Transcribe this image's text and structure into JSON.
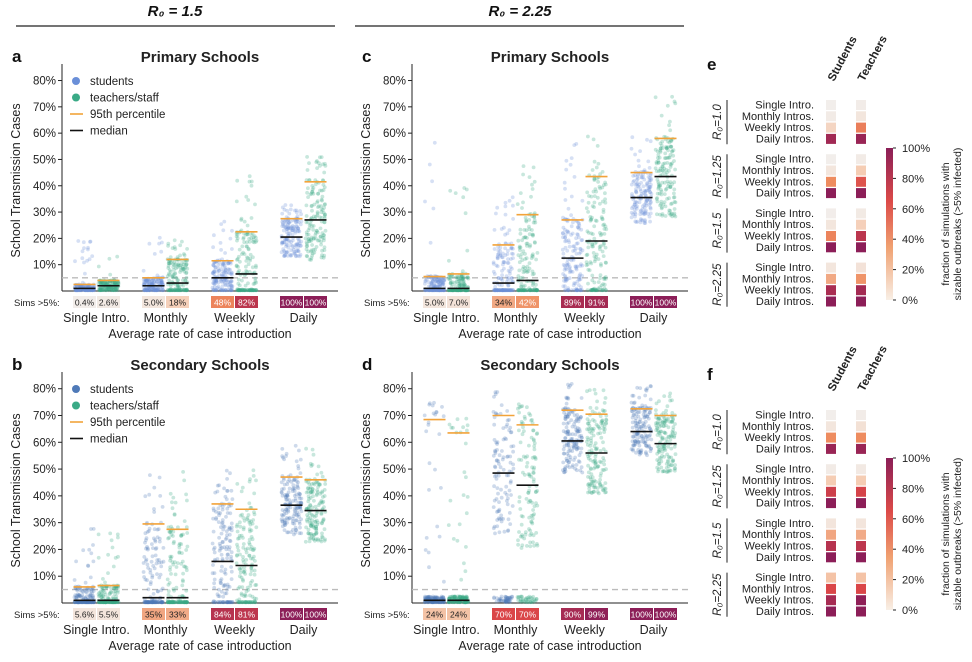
{
  "figure": {
    "r0_header_left": "R₀ = 1.5",
    "r0_header_right": "R₀ = 2.25"
  },
  "colors": {
    "students_primary": "#6a8fd8",
    "students_secondary": "#4f7ab8",
    "teachers": "#3aaa86",
    "p95": "#f2a33a",
    "median": "#111111",
    "threshold": "#bbbbbb",
    "heat_low": "#f2eeeb",
    "heat_mid": "#ec8a5c",
    "heat_high": "#a3245a"
  },
  "chart_data": [
    {
      "id": "a",
      "type": "scatter",
      "letter": "a",
      "title": "Primary Schools",
      "xlabel": "Average rate of case introduction",
      "ylabel": "School Transmission Cases",
      "ylim": [
        0,
        84
      ],
      "yticks": [
        "10%",
        "20%",
        "30%",
        "40%",
        "50%",
        "60%",
        "70%",
        "80%"
      ],
      "categories": [
        "Single Intro.",
        "Monthly",
        "Weekly",
        "Daily"
      ],
      "sims_label": "Sims >5%:",
      "threshold": 5,
      "legend": {
        "students": "students",
        "teachers": "teachers/staff",
        "p95": "95th percentile",
        "median": "median"
      },
      "series": [
        {
          "name": "students",
          "median": [
            1,
            2,
            5,
            20.5
          ],
          "p95": [
            2.5,
            5,
            11.5,
            27.5
          ],
          "max": [
            23,
            22,
            27,
            33
          ],
          "sims_pct": [
            "0.4%",
            "5.0%",
            "48%",
            "100%"
          ]
        },
        {
          "name": "teachers/staff",
          "median": [
            2,
            3,
            6.5,
            27
          ],
          "p95": [
            4,
            12,
            22.5,
            41.5
          ],
          "max": [
            14,
            20,
            45,
            53
          ],
          "sims_pct": [
            "2.6%",
            "18%",
            "82%",
            "100%"
          ]
        }
      ]
    },
    {
      "id": "b",
      "type": "scatter",
      "letter": "b",
      "title": "Secondary Schools",
      "xlabel": "Average rate of case introduction",
      "ylabel": "School Transmission Cases",
      "ylim": [
        0,
        84
      ],
      "yticks": [
        "10%",
        "20%",
        "30%",
        "40%",
        "50%",
        "60%",
        "70%",
        "80%"
      ],
      "categories": [
        "Single Intro.",
        "Monthly",
        "Weekly",
        "Daily"
      ],
      "sims_label": "Sims >5%:",
      "threshold": 5,
      "legend": {
        "students": "students",
        "teachers": "teachers/staff",
        "p95": "95th percentile",
        "median": "median"
      },
      "series": [
        {
          "name": "students",
          "median": [
            1,
            2,
            15.5,
            36.5
          ],
          "p95": [
            6,
            29.5,
            37,
            47
          ],
          "max": [
            32,
            48,
            50,
            60
          ],
          "sims_pct": [
            "5.6%",
            "35%",
            "84%",
            "100%"
          ]
        },
        {
          "name": "teachers/staff",
          "median": [
            1,
            2,
            14,
            34.5
          ],
          "p95": [
            6.5,
            27.5,
            35,
            46
          ],
          "max": [
            30,
            50,
            50,
            58
          ],
          "sims_pct": [
            "5.5%",
            "33%",
            "81%",
            "100%"
          ]
        }
      ]
    },
    {
      "id": "c",
      "type": "scatter",
      "letter": "c",
      "title": "Primary Schools",
      "xlabel": "Average rate of case introduction",
      "ylabel": "School Transmission Cases",
      "ylim": [
        0,
        84
      ],
      "yticks": [
        "10%",
        "20%",
        "30%",
        "40%",
        "50%",
        "60%",
        "70%",
        "80%"
      ],
      "categories": [
        "Single Intro.",
        "Monthly",
        "Weekly",
        "Daily"
      ],
      "sims_label": "Sims >5%:",
      "threshold": 5,
      "series": [
        {
          "name": "students",
          "median": [
            1,
            3,
            12.5,
            35.5
          ],
          "p95": [
            5.5,
            17.5,
            27,
            45
          ],
          "max": [
            60,
            38,
            56,
            60
          ],
          "sims_pct": [
            "5.0%",
            "34%",
            "89%",
            "100%"
          ]
        },
        {
          "name": "teachers/staff",
          "median": [
            1,
            4,
            19,
            43.5
          ],
          "p95": [
            6.5,
            29,
            43.5,
            58
          ],
          "max": [
            55,
            50,
            62,
            74
          ],
          "sims_pct": [
            "7.0%",
            "42%",
            "91%",
            "100%"
          ]
        }
      ]
    },
    {
      "id": "d",
      "type": "scatter",
      "letter": "d",
      "title": "Secondary Schools",
      "xlabel": "Average rate of case introduction",
      "ylabel": "School Transmission Cases",
      "ylim": [
        0,
        84
      ],
      "yticks": [
        "10%",
        "20%",
        "30%",
        "40%",
        "50%",
        "60%",
        "70%",
        "80%"
      ],
      "categories": [
        "Single Intro.",
        "Monthly",
        "Weekly",
        "Daily"
      ],
      "sims_label": "Sims >5%:",
      "threshold": 5,
      "series": [
        {
          "name": "students",
          "median": [
            1,
            48.5,
            60.5,
            64
          ],
          "p95": [
            68.5,
            70,
            72,
            72.5
          ],
          "max": [
            75,
            80,
            82,
            82
          ],
          "sims_pct": [
            "24%",
            "70%",
            "90%",
            "100%"
          ]
        },
        {
          "name": "teachers/staff",
          "median": [
            1,
            44,
            56,
            59.5
          ],
          "p95": [
            63.5,
            66.5,
            70.5,
            70
          ],
          "max": [
            70,
            76,
            80,
            80
          ],
          "sims_pct": [
            "24%",
            "70%",
            "99%",
            "100%"
          ]
        }
      ]
    },
    {
      "id": "e",
      "type": "heatmap",
      "letter": "e",
      "columns": [
        "Students",
        "Teachers"
      ],
      "row_labels": [
        "Single Intro.",
        "Monthly Intros.",
        "Weekly Intros.",
        "Daily Intros."
      ],
      "group_labels": [
        "R₀=1.0",
        "R₀=1.25",
        "R₀=1.5",
        "R₀=2.25"
      ],
      "colorbar_label_1": "fraction of simulations with",
      "colorbar_label_2": "sizable outbreaks (>5% infected)",
      "colorbar_ticks": [
        "100%",
        "80%",
        "60%",
        "40%",
        "20%",
        "0%"
      ],
      "values": [
        [
          [
            0.0,
            0.01
          ],
          [
            0.02,
            0.05
          ],
          [
            0.15,
            0.5
          ],
          [
            0.92,
            0.95
          ]
        ],
        [
          [
            0.0,
            0.02
          ],
          [
            0.05,
            0.2
          ],
          [
            0.45,
            0.65
          ],
          [
            1.0,
            1.0
          ]
        ],
        [
          [
            0.004,
            0.026
          ],
          [
            0.05,
            0.18
          ],
          [
            0.48,
            0.82
          ],
          [
            1.0,
            1.0
          ]
        ],
        [
          [
            0.05,
            0.07
          ],
          [
            0.34,
            0.42
          ],
          [
            0.89,
            0.91
          ],
          [
            1.0,
            1.0
          ]
        ]
      ]
    },
    {
      "id": "f",
      "type": "heatmap",
      "letter": "f",
      "columns": [
        "Students",
        "Teachers"
      ],
      "row_labels": [
        "Single Intro.",
        "Monthly Intros.",
        "Weekly Intros.",
        "Daily Intros."
      ],
      "group_labels": [
        "R₀=1.0",
        "R₀=1.25",
        "R₀=1.5",
        "R₀=2.25"
      ],
      "colorbar_label_1": "fraction of simulations with",
      "colorbar_label_2": "sizable outbreaks (>5% infected)",
      "colorbar_ticks": [
        "100%",
        "80%",
        "60%",
        "40%",
        "20%",
        "0%"
      ],
      "values": [
        [
          [
            0.0,
            0.01
          ],
          [
            0.05,
            0.08
          ],
          [
            0.45,
            0.45
          ],
          [
            0.95,
            0.95
          ]
        ],
        [
          [
            0.02,
            0.03
          ],
          [
            0.2,
            0.2
          ],
          [
            0.75,
            0.72
          ],
          [
            1.0,
            1.0
          ]
        ],
        [
          [
            0.056,
            0.055
          ],
          [
            0.35,
            0.33
          ],
          [
            0.84,
            0.81
          ],
          [
            1.0,
            1.0
          ]
        ],
        [
          [
            0.24,
            0.24
          ],
          [
            0.7,
            0.7
          ],
          [
            0.9,
            0.99
          ],
          [
            1.0,
            1.0
          ]
        ]
      ]
    }
  ]
}
